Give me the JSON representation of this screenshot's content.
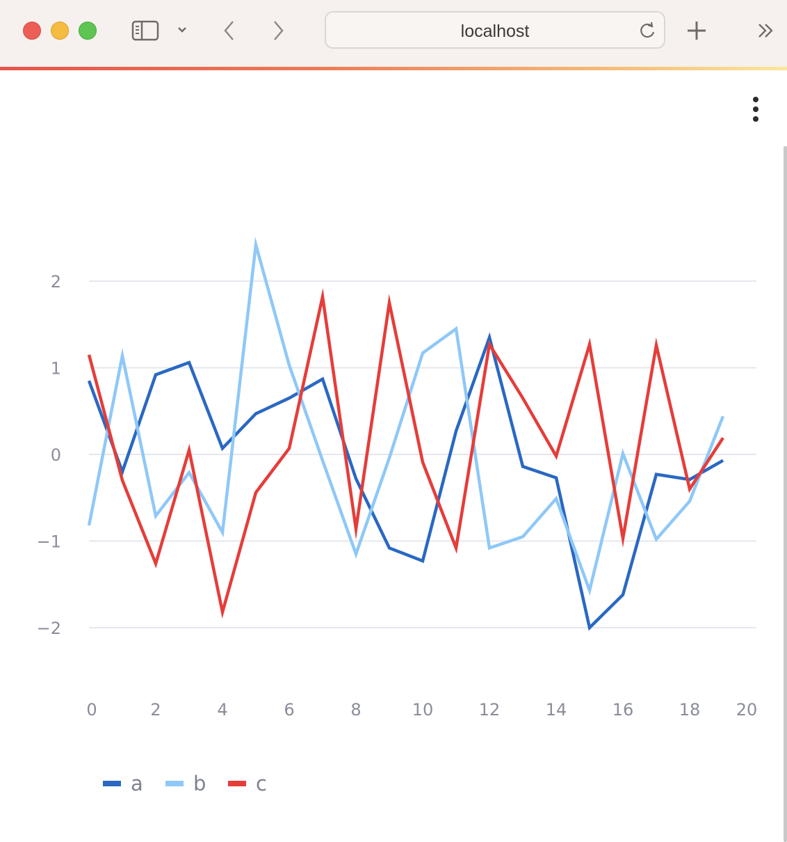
{
  "browser": {
    "url": "localhost",
    "icons": {
      "sidebar": "sidebar-icon",
      "chevron": "chevron-down-icon",
      "back": "back-arrow-icon",
      "forward": "forward-arrow-icon",
      "reload": "reload-icon",
      "new_tab": "plus-icon",
      "more": "double-chevron-right-icon"
    }
  },
  "page": {
    "menu_icon": "kebab-menu-icon"
  },
  "chart_data": {
    "type": "line",
    "x": [
      0,
      1,
      2,
      3,
      4,
      5,
      6,
      7,
      8,
      9,
      10,
      11,
      12,
      13,
      14,
      15,
      16,
      17,
      18,
      19
    ],
    "series": [
      {
        "name": "a",
        "color": "#2a68c2",
        "values": [
          0.85,
          -0.2,
          0.92,
          1.06,
          0.07,
          0.47,
          0.65,
          0.87,
          -0.28,
          -1.08,
          -1.23,
          0.27,
          1.35,
          -0.14,
          -0.27,
          -2.0,
          -1.62,
          -0.23,
          -0.29,
          -0.07
        ]
      },
      {
        "name": "b",
        "color": "#8fc8f8",
        "values": [
          -0.82,
          1.14,
          -0.71,
          -0.21,
          -0.9,
          2.42,
          1.03,
          -0.07,
          -1.15,
          -0.04,
          1.17,
          1.45,
          -1.08,
          -0.95,
          -0.51,
          -1.57,
          0.01,
          -0.98,
          -0.54,
          0.44
        ]
      },
      {
        "name": "c",
        "color": "#e53d3a",
        "values": [
          1.15,
          -0.3,
          -1.26,
          0.05,
          -1.82,
          -0.44,
          0.07,
          1.82,
          -0.86,
          1.75,
          -0.09,
          -1.08,
          1.27,
          0.65,
          -0.02,
          1.27,
          -0.97,
          1.26,
          -0.4,
          0.19
        ]
      }
    ],
    "x_ticks": [
      "0",
      "2",
      "4",
      "6",
      "8",
      "10",
      "12",
      "14",
      "16",
      "18",
      "20"
    ],
    "y_ticks": [
      "2",
      "1",
      "0",
      "−1",
      "−2"
    ],
    "y_tick_values": [
      2,
      1,
      0,
      -1,
      -2
    ],
    "x_tick_values": [
      0,
      2,
      4,
      6,
      8,
      10,
      12,
      14,
      16,
      18,
      20
    ],
    "xlim": [
      0,
      20
    ],
    "ylim": [
      -2.75,
      2.75
    ],
    "grid": "horizontal",
    "legend_position": "bottom-left",
    "xlabel": "",
    "ylabel": ""
  }
}
